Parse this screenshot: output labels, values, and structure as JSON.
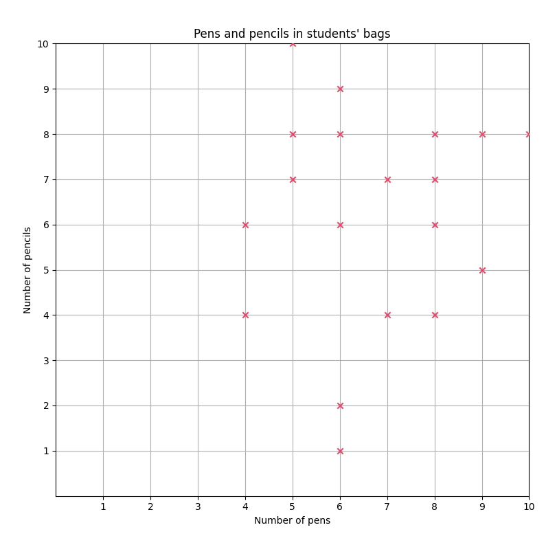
{
  "chart_data": {
    "type": "scatter",
    "title": "Pens and pencils in students' bags",
    "x_label": "Number of pens",
    "y_label": "Number of pencils",
    "x": [
      5,
      6,
      5,
      6,
      8,
      9,
      10,
      5,
      7,
      8,
      4,
      6,
      8,
      9,
      4,
      7,
      8,
      6,
      6
    ],
    "values": [
      10,
      9,
      8,
      8,
      8,
      8,
      8,
      7,
      7,
      7,
      6,
      6,
      6,
      5,
      4,
      4,
      4,
      2,
      1
    ],
    "color": "#e8476a",
    "marker": "x",
    "xlim": [
      0,
      10
    ],
    "ylim": [
      0,
      10
    ],
    "xticks": [
      1,
      2,
      3,
      4,
      5,
      6,
      7,
      8,
      9,
      10
    ],
    "yticks": [
      1,
      2,
      3,
      4,
      5,
      6,
      7,
      8,
      9,
      10
    ],
    "grid": true
  }
}
